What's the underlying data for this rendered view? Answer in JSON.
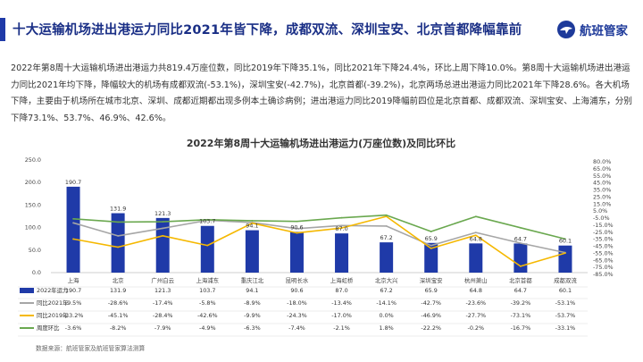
{
  "header": {
    "title": "十大运输机场进出港运力同比2021年皆下降，成都双流、深圳宝安、北京首都降幅靠前",
    "brand_name": "航班管家",
    "accent_color": "#1f3aa8"
  },
  "summary": "2022年第8周十大运输机场进出港运力共819.4万座位数，同比2019年下降35.1%，同比2021年下降24.4%，环比上周下降10.0%。第8周十大运输机场进出港运力同比2021年均下降，降幅较大的机场有成都双流(-53.1%)，深圳宝安(-42.7%)，北京首都(-39.2%)，北京两场总进出港运力同比2021年下降28.6%。各大机场下降，主要由于机场所在城市北京、深圳、成都近期都出现多例本土确诊病例；进出港运力同比2019降幅前四位是北京首都、成都双流、深圳宝安、上海浦东，分别下降73.1%、53.7%、46.9%、42.6%。",
  "source": "数据来源：航班管家及航班管家算法测算",
  "chart_data": {
    "type": "bar+line",
    "title": "2022年第8周十大运输机场进出港运力(万座位数)及同比环比",
    "categories": [
      "上海",
      "北京",
      "广州白云",
      "上海浦东",
      "重庆江北",
      "昆明长水",
      "上海虹桥",
      "北京大兴",
      "深圳宝安",
      "杭州萧山",
      "北京首都",
      "成都双流"
    ],
    "y_left": {
      "min": 0,
      "max": 250,
      "ticks": [
        "0.0",
        "50.0",
        "100.0",
        "150.0",
        "200.0",
        "250.0"
      ]
    },
    "y_right": {
      "min": -85,
      "max": 80,
      "ticks": [
        "80.0%",
        "65.0%",
        "55.0%",
        "45.0%",
        "35.0%",
        "25.0%",
        "15.0%",
        "5.0%",
        "-5.0%",
        "-15.0%",
        "-25.0%",
        "-35.0%",
        "-45.0%",
        "-55.0%",
        "-65.0%",
        "-75.0%",
        "-85.0%"
      ]
    },
    "series": [
      {
        "name": "2022年运力",
        "kind": "bar",
        "color": "#1f3aa8",
        "values": [
          190.7,
          131.9,
          121.3,
          103.7,
          94.1,
          90.6,
          87.0,
          67.2,
          65.9,
          64.8,
          64.7,
          60.1
        ],
        "labels": [
          "190.7",
          "131.9",
          "121.3",
          "103.7",
          "94.1",
          "90.6",
          "87.0",
          "67.2",
          "65.9",
          "64.8",
          "64.7",
          "60.1"
        ]
      },
      {
        "name": "同比2021年",
        "kind": "line",
        "color": "#a6a6a6",
        "values": [
          -9.5,
          -28.6,
          -17.4,
          -5.8,
          -8.9,
          -18.0,
          -13.4,
          -14.1,
          -42.7,
          -23.6,
          -39.2,
          -53.1
        ],
        "labels": [
          "-9.5%",
          "-28.6%",
          "-17.4%",
          "-5.8%",
          "-8.9%",
          "-18.0%",
          "-13.4%",
          "-14.1%",
          "-42.7%",
          "-23.6%",
          "-39.2%",
          "-53.1%"
        ]
      },
      {
        "name": "同比2019年",
        "kind": "line",
        "color": "#f5b800",
        "values": [
          -33.2,
          -45.1,
          -28.4,
          -42.6,
          -9.9,
          -24.3,
          -17.0,
          0.0,
          -46.9,
          -27.7,
          -73.1,
          -53.7
        ],
        "labels": [
          "-33.2%",
          "-45.1%",
          "-28.4%",
          "-42.6%",
          "-9.9%",
          "-24.3%",
          "-17.0%",
          "0.0%",
          "-46.9%",
          "-27.7%",
          "-73.1%",
          "-53.7%"
        ]
      },
      {
        "name": "周度环比",
        "kind": "line",
        "color": "#6aa84f",
        "values": [
          -3.6,
          -8.2,
          -7.9,
          -4.9,
          -6.3,
          -7.4,
          -2.1,
          1.8,
          -22.2,
          -0.2,
          -16.7,
          -33.1
        ],
        "labels": [
          "-3.6%",
          "-8.2%",
          "-7.9%",
          "-4.9%",
          "-6.3%",
          "-7.4%",
          "-2.1%",
          "1.8%",
          "-22.2%",
          "-0.2%",
          "-16.7%",
          "-33.1%"
        ]
      }
    ],
    "grid": false,
    "legend": "data-table-left"
  }
}
